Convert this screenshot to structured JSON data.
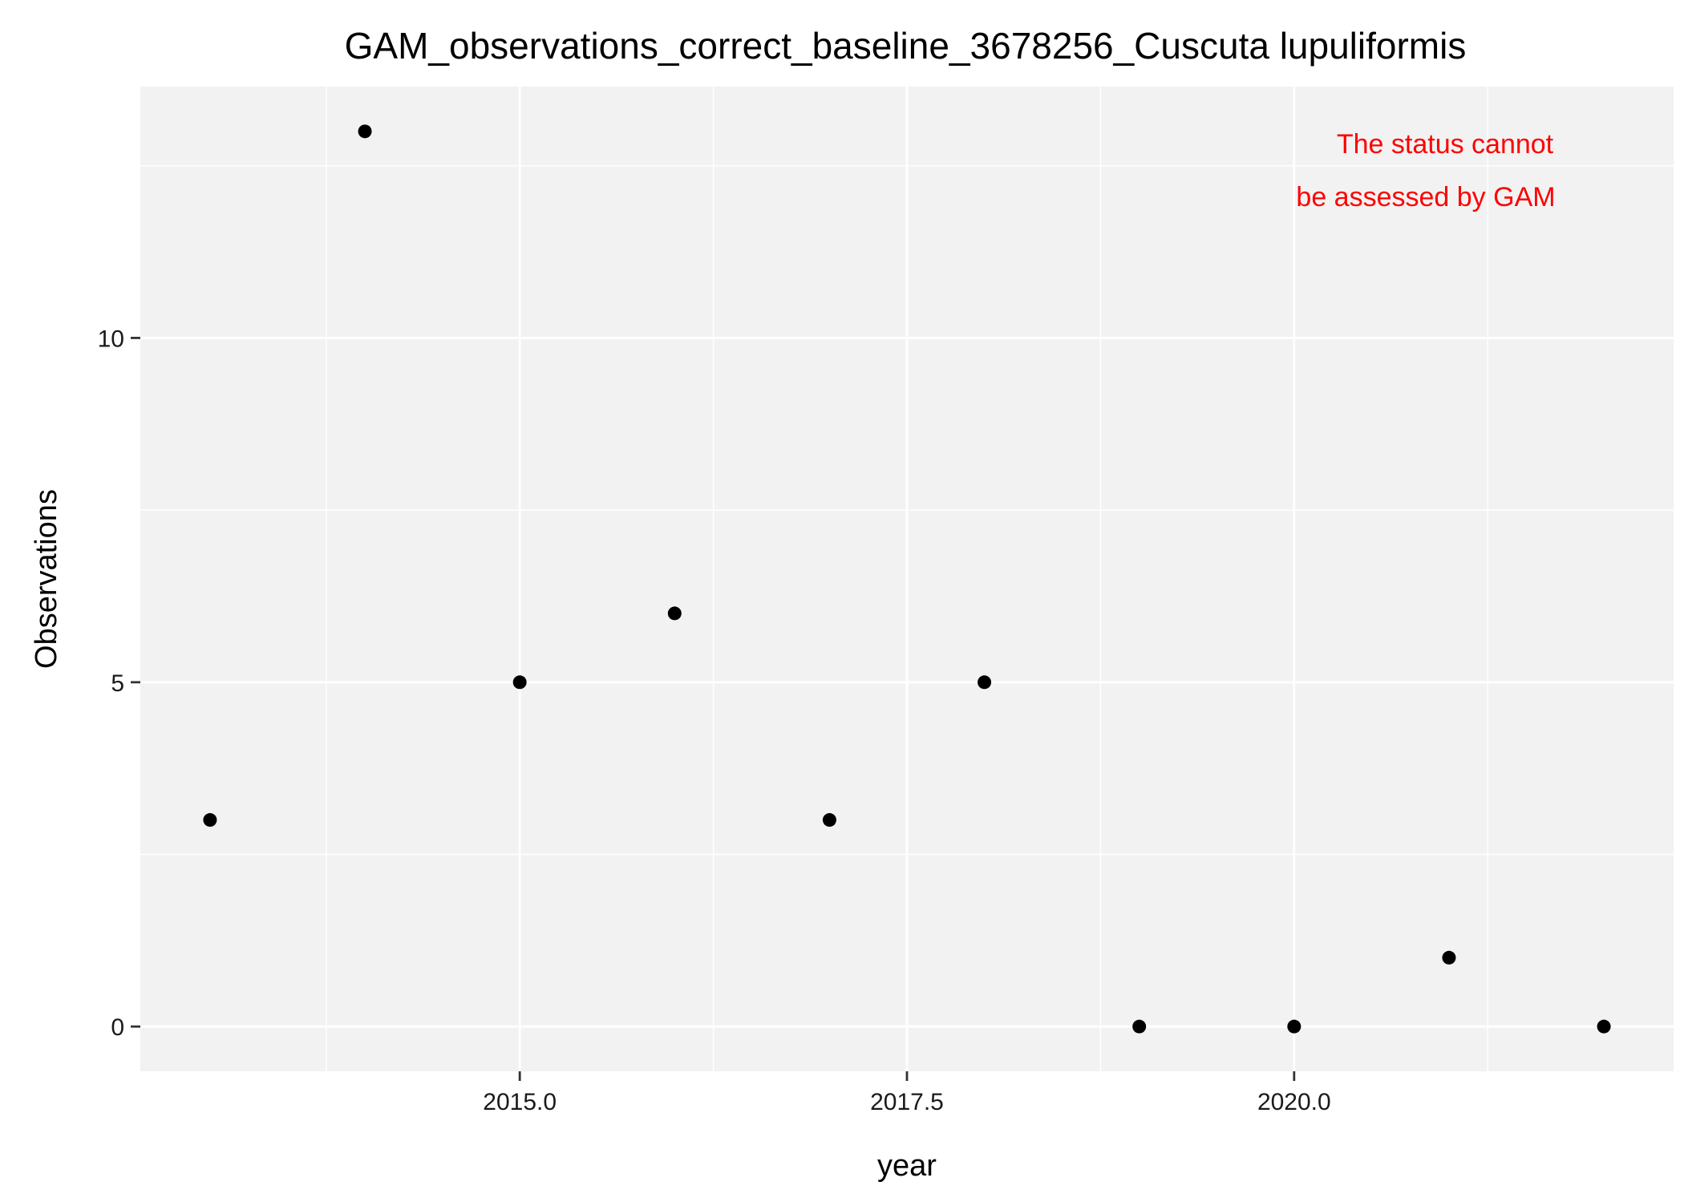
{
  "chart_data": {
    "type": "scatter",
    "title": "GAM_observations_correct_baseline_3678256_Cuscuta lupuliformis",
    "xlabel": "year",
    "ylabel": "Observations",
    "x": [
      2013,
      2014,
      2015,
      2016,
      2017,
      2018,
      2019,
      2020,
      2021,
      2022
    ],
    "y": [
      3,
      13,
      5,
      6,
      3,
      5,
      0,
      0,
      1,
      0
    ],
    "xlim": [
      2012.55,
      2022.45
    ],
    "ylim": [
      -0.65,
      13.65
    ],
    "x_ticks": [
      2015.0,
      2017.5,
      2020.0
    ],
    "x_tick_labels": [
      "2015.0",
      "2017.5",
      "2020.0"
    ],
    "x_minor_ticks": [
      2013.75,
      2016.25,
      2018.75,
      2021.25
    ],
    "y_ticks": [
      0,
      5,
      10
    ],
    "y_tick_labels": [
      "0",
      "5",
      "10"
    ],
    "y_minor_ticks": [
      2.5,
      7.5,
      12.5
    ],
    "grid": true,
    "panel_color": "#f2f2f2",
    "point_color": "#000000",
    "annotation": {
      "lines": [
        "The status cannot",
        "be assessed by GAM"
      ],
      "color": "#ff0000"
    }
  }
}
